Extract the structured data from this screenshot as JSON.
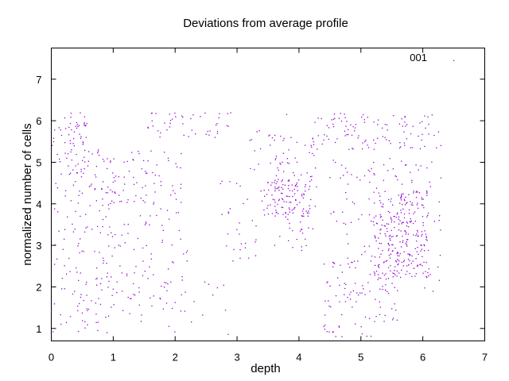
{
  "chart_data": {
    "type": "scatter",
    "title": "Deviations from average profile",
    "xlabel": "depth",
    "ylabel": "normalized number of cells",
    "xlim": [
      0,
      7
    ],
    "ylim": [
      0.7,
      7.75
    ],
    "xticks": [
      0,
      1,
      2,
      3,
      4,
      5,
      6,
      7
    ],
    "yticks": [
      1,
      2,
      3,
      4,
      5,
      6,
      7
    ],
    "grid": false,
    "legend_position": "top-right",
    "series": [
      {
        "name": "001",
        "color": "#9400d3",
        "marker": "dot",
        "clusters": [
          {
            "x": [
              0.0,
              0.6
            ],
            "y": [
              0.9,
              6.2
            ],
            "n": 90
          },
          {
            "x": [
              0.1,
              0.55
            ],
            "y": [
              4.7,
              6.1
            ],
            "n": 45
          },
          {
            "x": [
              0.6,
              2.1
            ],
            "y": [
              4.0,
              5.3
            ],
            "n": 95
          },
          {
            "x": [
              0.4,
              2.2
            ],
            "y": [
              1.4,
              4.2
            ],
            "n": 130
          },
          {
            "x": [
              0.7,
              2.9
            ],
            "y": [
              0.8,
              2.4
            ],
            "n": 40
          },
          {
            "x": [
              1.4,
              2.9
            ],
            "y": [
              5.6,
              6.2
            ],
            "n": 45
          },
          {
            "x": [
              2.7,
              3.4
            ],
            "y": [
              2.6,
              4.6
            ],
            "n": 30
          },
          {
            "x": [
              3.4,
              4.2
            ],
            "y": [
              3.7,
              4.6
            ],
            "n": 90
          },
          {
            "x": [
              3.6,
              4.3
            ],
            "y": [
              2.8,
              5.6
            ],
            "n": 80
          },
          {
            "x": [
              3.2,
              3.9
            ],
            "y": [
              4.8,
              5.8
            ],
            "n": 25
          },
          {
            "x": [
              4.2,
              6.3
            ],
            "y": [
              5.3,
              6.2
            ],
            "n": 110
          },
          {
            "x": [
              4.5,
              6.3
            ],
            "y": [
              3.5,
              5.1
            ],
            "n": 90
          },
          {
            "x": [
              5.2,
              6.1
            ],
            "y": [
              2.2,
              4.3
            ],
            "n": 230
          },
          {
            "x": [
              4.4,
              5.6
            ],
            "y": [
              0.8,
              2.6
            ],
            "n": 90
          },
          {
            "x": [
              4.6,
              6.3
            ],
            "y": [
              1.8,
              3.6
            ],
            "n": 60
          }
        ],
        "points": [
          {
            "x": 6.5,
            "y": 7.45
          },
          {
            "x": 3.8,
            "y": 6.15
          },
          {
            "x": 0.9,
            "y": 0.9
          },
          {
            "x": 0.75,
            "y": 0.95
          }
        ]
      }
    ]
  }
}
